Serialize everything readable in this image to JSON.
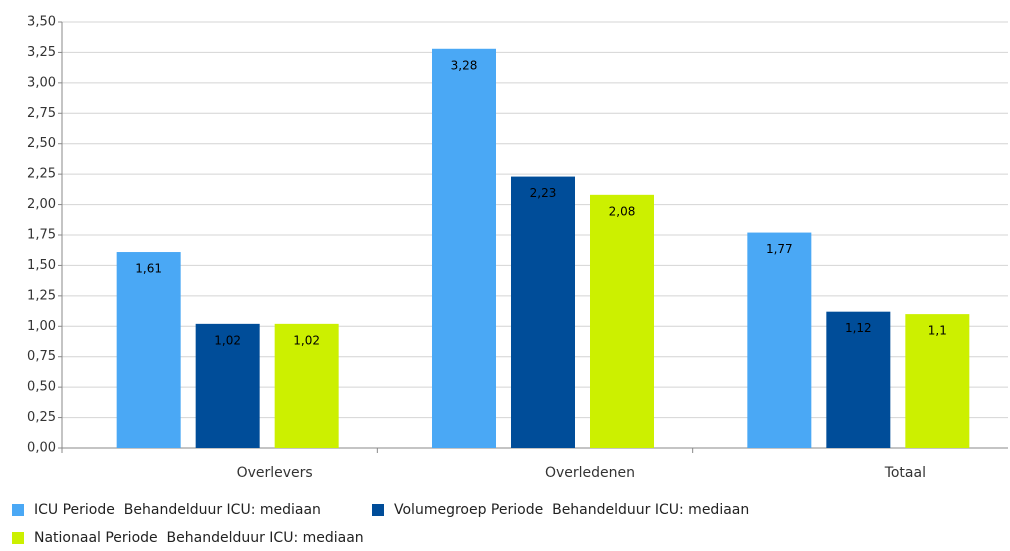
{
  "chart_data": {
    "type": "bar",
    "categories": [
      "Overlevers",
      "Overledenen",
      "Totaal"
    ],
    "series": [
      {
        "name": "ICU Periode  Behandelduur ICU: mediaan",
        "color": "#4aa8f5",
        "values": [
          1.61,
          3.28,
          1.77
        ],
        "value_labels": [
          "1,61",
          "3,28",
          "1,77"
        ]
      },
      {
        "name": "Volumegroep Periode  Behandelduur ICU: mediaan",
        "color": "#004d99",
        "values": [
          1.02,
          2.23,
          1.12
        ],
        "value_labels": [
          "1,02",
          "2,23",
          "1,12"
        ]
      },
      {
        "name": "Nationaal Periode  Behandelduur ICU: mediaan",
        "color": "#ccf000",
        "values": [
          1.02,
          2.08,
          1.1
        ],
        "value_labels": [
          "1,02",
          "2,08",
          "1,1"
        ]
      }
    ],
    "ylim": [
      0,
      3.5
    ],
    "yticks": [
      {
        "value": 0,
        "label": "0,00"
      },
      {
        "value": 0.25,
        "label": "0,25"
      },
      {
        "value": 0.5,
        "label": "0,50"
      },
      {
        "value": 0.75,
        "label": "0,75"
      },
      {
        "value": 1,
        "label": "1,00"
      },
      {
        "value": 1.25,
        "label": "1,25"
      },
      {
        "value": 1.5,
        "label": "1,50"
      },
      {
        "value": 1.75,
        "label": "1,75"
      },
      {
        "value": 2,
        "label": "2,00"
      },
      {
        "value": 2.25,
        "label": "2,25"
      },
      {
        "value": 2.5,
        "label": "2,50"
      },
      {
        "value": 2.75,
        "label": "2,75"
      },
      {
        "value": 3,
        "label": "3,00"
      },
      {
        "value": 3.25,
        "label": "3,25"
      },
      {
        "value": 3.5,
        "label": "3,50"
      }
    ],
    "grid": true,
    "legend": "bottom"
  }
}
